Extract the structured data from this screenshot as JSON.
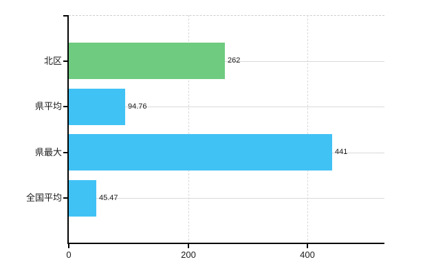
{
  "chart_data": {
    "type": "bar",
    "orientation": "horizontal",
    "title": "",
    "xlabel": "",
    "ylabel": "",
    "categories": [
      "北区",
      "県平均",
      "県最大",
      "全国平均"
    ],
    "values": [
      262,
      94.76,
      441,
      45.47
    ],
    "value_labels": [
      "262",
      "94.76",
      "441",
      "45.47"
    ],
    "bar_colors": [
      "#6ecb7f",
      "#41c2f5",
      "#41c2f5",
      "#41c2f5"
    ],
    "xlim": [
      0,
      529
    ],
    "x_ticks": [
      {
        "value": 0,
        "label": "0"
      },
      {
        "value": 200,
        "label": "200"
      },
      {
        "value": 400,
        "label": "400"
      }
    ],
    "grid": true,
    "legend_position": "none",
    "colors": {
      "axis": "#000000",
      "horizontal_grid": "#d9d9d9",
      "vertical_grid": "#d9d9d9",
      "top_border": "#cccccc",
      "text": "#1a1a1a",
      "background": "#ffffff"
    }
  }
}
